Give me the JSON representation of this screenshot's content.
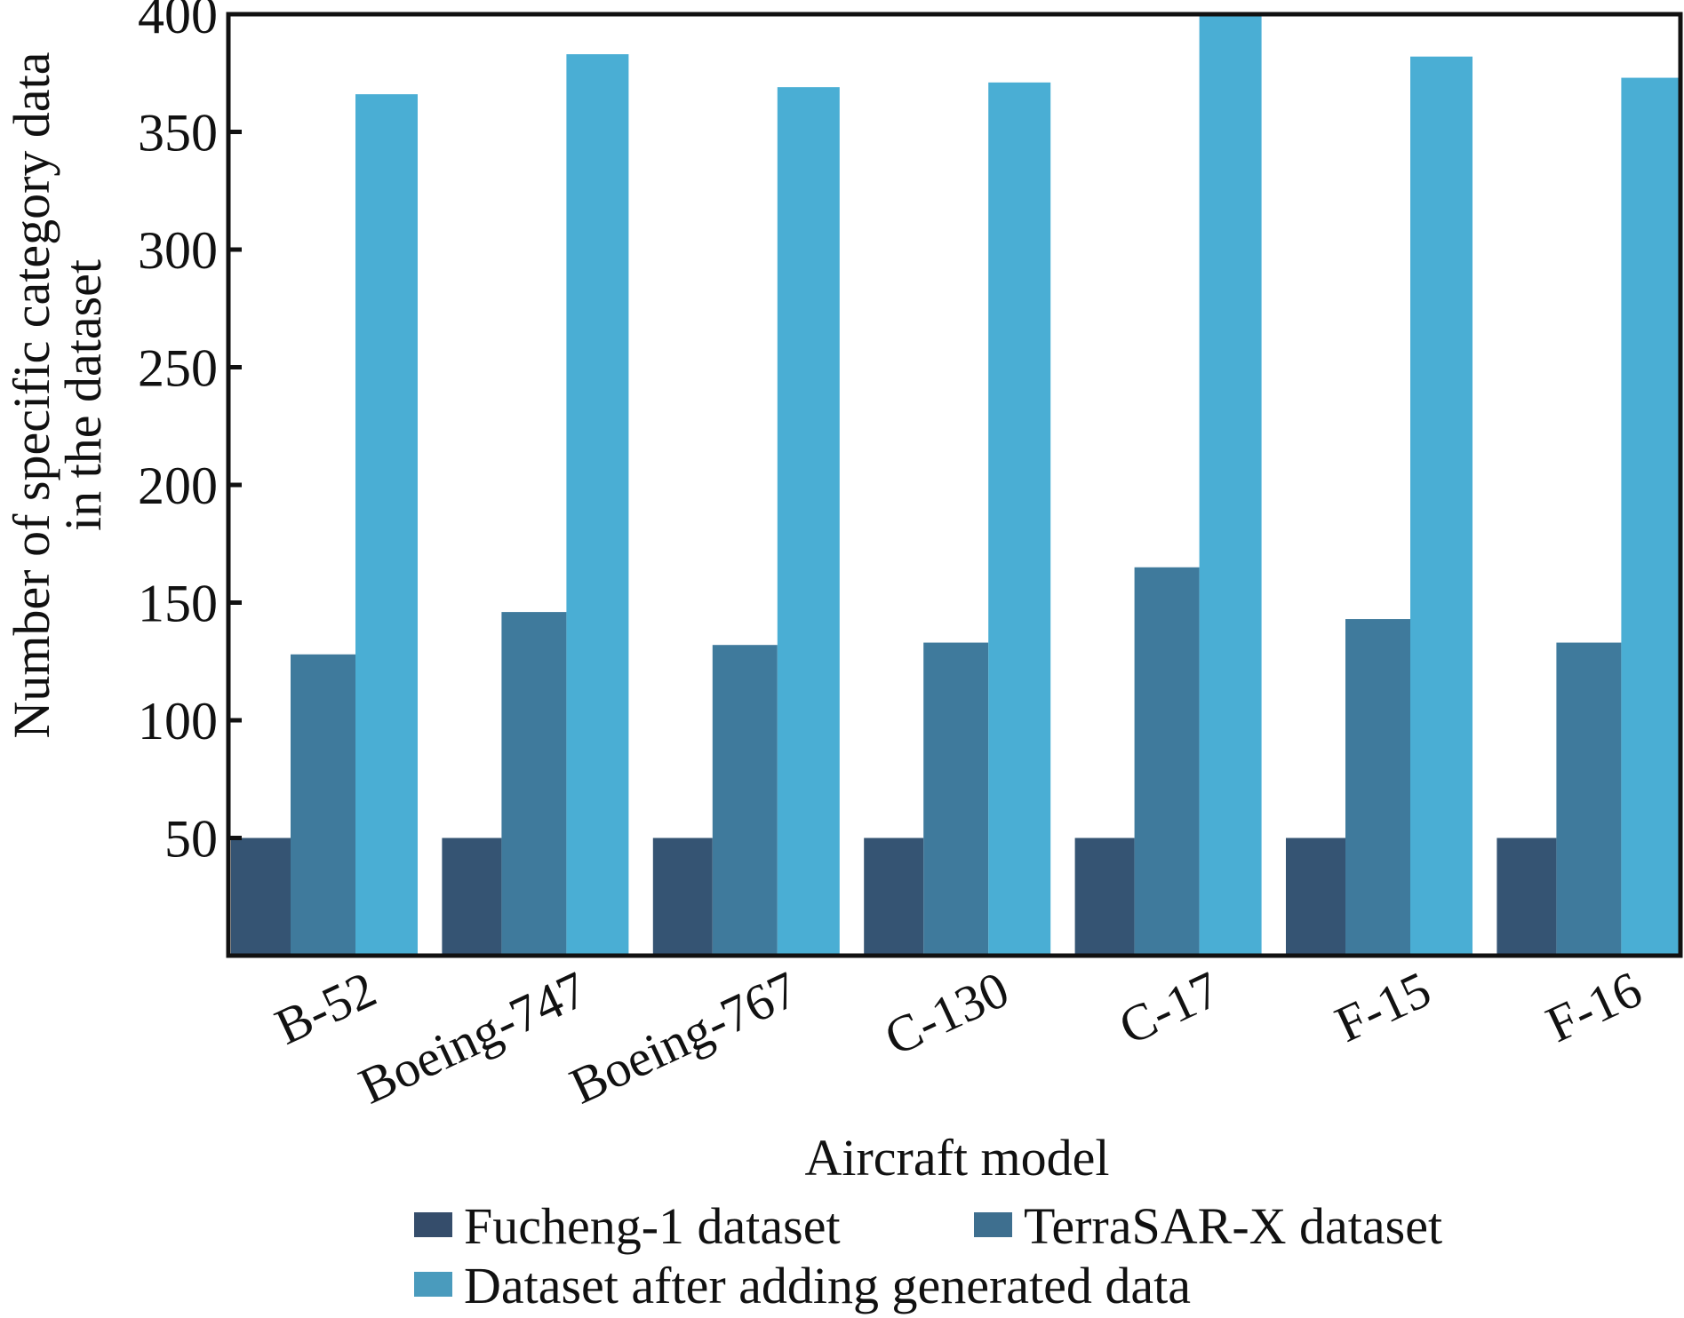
{
  "chart_data": {
    "type": "bar",
    "title": "",
    "xlabel": "Aircraft model",
    "ylabel_lines": [
      "Number of specific category data",
      "in the dataset"
    ],
    "ylim": [
      0,
      400
    ],
    "yticks": [
      50,
      100,
      150,
      200,
      250,
      300,
      350,
      400
    ],
    "ytick_labels": [
      "50",
      "100",
      "150",
      "200",
      "250",
      "300",
      "350",
      "400"
    ],
    "grid": false,
    "legend_position": "bottom",
    "categories": [
      "B-52",
      "Boeing-747",
      "Boeing-767",
      "C-130",
      "C-17",
      "F-15",
      "F-16"
    ],
    "series": [
      {
        "name": "Fucheng-1 dataset",
        "color": "#355473",
        "values": [
          50,
          50,
          50,
          50,
          50,
          50,
          50
        ]
      },
      {
        "name": "TerraSAR-X dataset",
        "color": "#3f7a9c",
        "values": [
          128,
          146,
          132,
          133,
          165,
          143,
          133
        ]
      },
      {
        "name": "Dataset after adding generated data",
        "color": "#4aaed4",
        "values": [
          366,
          383,
          369,
          371,
          400,
          382,
          373
        ]
      }
    ],
    "legend_colors": [
      "#354d6b",
      "#3e6f8f",
      "#4a9bbd"
    ]
  }
}
